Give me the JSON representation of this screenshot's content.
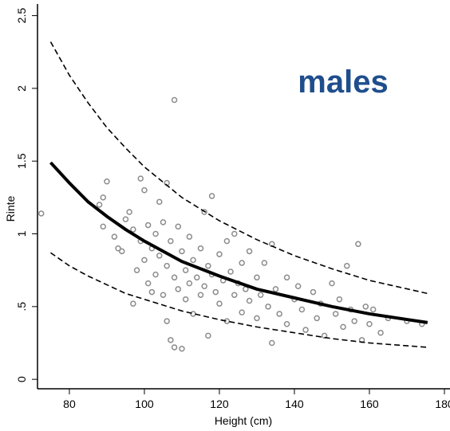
{
  "chart_data": {
    "type": "scatter",
    "xlabel": "Height (cm)",
    "ylabel": "Rinte",
    "annotation": "males",
    "xlim": [
      71.5,
      181
    ],
    "ylim": [
      -0.065,
      2.58
    ],
    "xticks": [
      80,
      100,
      120,
      140,
      160,
      180
    ],
    "yticks": [
      0,
      {
        "value": 0.5,
        "label": ".5"
      },
      1,
      1.5,
      2,
      2.5
    ],
    "point_color": "#8c8c8c",
    "points": {
      "x": [
        72.5,
        88,
        89,
        90,
        89,
        92,
        93,
        94,
        95,
        96,
        97,
        97,
        98,
        99,
        99,
        100,
        100,
        101,
        101,
        102,
        102,
        103,
        103,
        104,
        104,
        105,
        105,
        106,
        106,
        106,
        107,
        107,
        108,
        108,
        108,
        109,
        109,
        110,
        110,
        111,
        111,
        112,
        112,
        113,
        113,
        114,
        115,
        115,
        116,
        116,
        117,
        117,
        118,
        118,
        119,
        120,
        120,
        121,
        122,
        122,
        123,
        124,
        124,
        125,
        126,
        126,
        127,
        128,
        128,
        130,
        130,
        131,
        132,
        133,
        134,
        134,
        135,
        136,
        138,
        138,
        140,
        141,
        142,
        143,
        145,
        146,
        147,
        148,
        150,
        151,
        152,
        153,
        154,
        155,
        156,
        157,
        158,
        159,
        160,
        161,
        163,
        165,
        170,
        174
      ],
      "y": [
        1.14,
        1.2,
        1.25,
        1.36,
        1.05,
        0.98,
        0.9,
        0.88,
        1.1,
        1.15,
        1.03,
        0.52,
        0.75,
        1.38,
        0.95,
        0.82,
        1.3,
        0.66,
        1.06,
        0.9,
        0.6,
        1.0,
        0.72,
        1.22,
        0.85,
        1.08,
        0.58,
        1.35,
        0.78,
        0.4,
        0.95,
        0.27,
        1.92,
        0.7,
        0.22,
        1.05,
        0.62,
        0.88,
        0.21,
        0.75,
        0.55,
        0.98,
        0.66,
        0.82,
        0.45,
        0.7,
        0.9,
        0.58,
        1.15,
        0.64,
        0.78,
        0.3,
        1.26,
        0.72,
        0.6,
        0.86,
        0.52,
        0.68,
        0.95,
        0.4,
        0.74,
        1.0,
        0.58,
        0.66,
        0.8,
        0.46,
        0.62,
        0.88,
        0.54,
        0.7,
        0.42,
        0.58,
        0.8,
        0.5,
        0.93,
        0.25,
        0.62,
        0.45,
        0.7,
        0.38,
        0.55,
        0.64,
        0.48,
        0.34,
        0.6,
        0.42,
        0.52,
        0.3,
        0.66,
        0.45,
        0.55,
        0.36,
        0.78,
        0.48,
        0.4,
        0.93,
        0.27,
        0.5,
        0.38,
        0.48,
        0.32,
        0.42,
        0.4,
        0.38
      ]
    },
    "curves": [
      {
        "style": "solid",
        "color": "#000000",
        "x": [
          75,
          80,
          85,
          90,
          95,
          100,
          110,
          120,
          130,
          140,
          150,
          160,
          175.5
        ],
        "values": [
          1.49,
          1.35,
          1.22,
          1.12,
          1.03,
          0.95,
          0.81,
          0.71,
          0.62,
          0.56,
          0.5,
          0.45,
          0.39
        ]
      },
      {
        "style": "dashed",
        "color": "#000000",
        "x": [
          75,
          80,
          85,
          90,
          95,
          100,
          110,
          120,
          130,
          140,
          150,
          160,
          175.5
        ],
        "values": [
          2.32,
          2.09,
          1.9,
          1.73,
          1.59,
          1.46,
          1.25,
          1.09,
          0.96,
          0.85,
          0.76,
          0.68,
          0.59
        ]
      },
      {
        "style": "dashed",
        "color": "#000000",
        "x": [
          75,
          80,
          85,
          90,
          95,
          100,
          110,
          120,
          130,
          140,
          150,
          160,
          175.5
        ],
        "values": [
          0.87,
          0.78,
          0.71,
          0.65,
          0.59,
          0.55,
          0.47,
          0.41,
          0.36,
          0.32,
          0.28,
          0.25,
          0.22
        ]
      }
    ]
  }
}
